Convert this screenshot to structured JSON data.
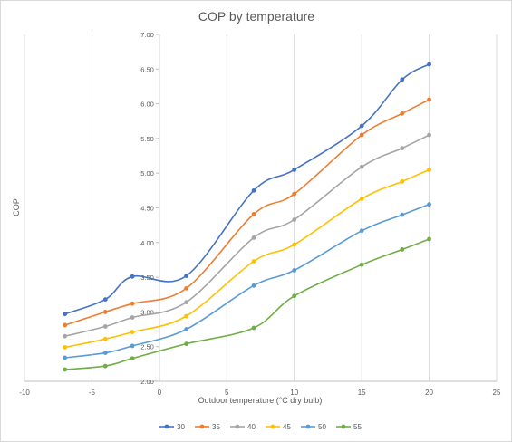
{
  "chart_data": {
    "type": "line",
    "title": "COP by temperature",
    "xlabel": "Outdoor temperature (°C dry bulb)",
    "ylabel": "COP",
    "xlim": [
      -10,
      25
    ],
    "ylim": [
      2.0,
      7.0
    ],
    "xticks": [
      -10,
      -5,
      0,
      5,
      10,
      15,
      20,
      25
    ],
    "xtick_labels": [
      "-10",
      "-5",
      "0",
      "5",
      "10",
      "15",
      "20",
      "25"
    ],
    "yticks": [
      2.0,
      2.5,
      3.0,
      3.5,
      4.0,
      4.5,
      5.0,
      5.5,
      6.0,
      6.5,
      7.0
    ],
    "ytick_labels": [
      "2.00",
      "2.50",
      "3.00",
      "3.50",
      "4.00",
      "4.50",
      "5.00",
      "5.50",
      "6.00",
      "6.50",
      "7.00"
    ],
    "grid": "vertical",
    "legend": "bottom",
    "x": [
      -7,
      -4,
      -2,
      2,
      7,
      10,
      15,
      18,
      20
    ],
    "series": [
      {
        "name": "30",
        "color": "#4472c4",
        "values": [
          2.97,
          3.18,
          3.51,
          3.52,
          4.75,
          5.05,
          5.68,
          6.35,
          6.57
        ]
      },
      {
        "name": "35",
        "color": "#ed7d31",
        "values": [
          2.81,
          3.0,
          3.12,
          3.34,
          4.41,
          4.7,
          5.55,
          5.86,
          6.06
        ]
      },
      {
        "name": "40",
        "color": "#a5a5a5",
        "values": [
          2.65,
          2.79,
          2.92,
          3.14,
          4.07,
          4.33,
          5.09,
          5.36,
          5.55
        ]
      },
      {
        "name": "45",
        "color": "#ffc000",
        "values": [
          2.49,
          2.61,
          2.71,
          2.94,
          3.73,
          3.97,
          4.63,
          4.88,
          5.05
        ]
      },
      {
        "name": "50",
        "color": "#5b9bd5",
        "values": [
          2.34,
          2.41,
          2.51,
          2.75,
          3.38,
          3.6,
          4.17,
          4.4,
          4.55
        ]
      },
      {
        "name": "55",
        "color": "#70ad47",
        "values": [
          2.17,
          2.22,
          2.33,
          2.54,
          2.77,
          3.23,
          3.68,
          3.9,
          4.05
        ]
      }
    ]
  }
}
